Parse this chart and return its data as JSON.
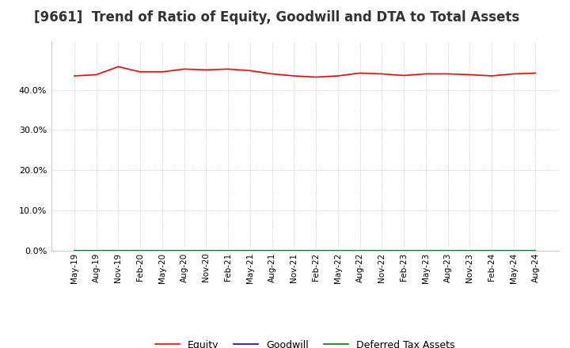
{
  "title": "[9661]  Trend of Ratio of Equity, Goodwill and DTA to Total Assets",
  "title_fontsize": 12,
  "background_color": "#ffffff",
  "plot_bg_color": "#ffffff",
  "grid_color": "#aaaaaa",
  "ylim": [
    0.0,
    0.52
  ],
  "yticks": [
    0.0,
    0.1,
    0.2,
    0.3,
    0.4
  ],
  "x_labels": [
    "May-19",
    "Aug-19",
    "Nov-19",
    "Feb-20",
    "May-20",
    "Aug-20",
    "Nov-20",
    "Feb-21",
    "May-21",
    "Aug-21",
    "Nov-21",
    "Feb-22",
    "May-22",
    "Aug-22",
    "Nov-22",
    "Feb-23",
    "May-23",
    "Aug-23",
    "Nov-23",
    "Feb-24",
    "May-24",
    "Aug-24"
  ],
  "equity": [
    0.435,
    0.438,
    0.458,
    0.445,
    0.445,
    0.452,
    0.45,
    0.452,
    0.448,
    0.44,
    0.435,
    0.432,
    0.435,
    0.442,
    0.44,
    0.436,
    0.44,
    0.44,
    0.438,
    0.435,
    0.44,
    0.442
  ],
  "goodwill": [
    0.0,
    0.0,
    0.0,
    0.0,
    0.0,
    0.0,
    0.0,
    0.0,
    0.0,
    0.0,
    0.0,
    0.0,
    0.0,
    0.0,
    0.0,
    0.0,
    0.0,
    0.0,
    0.0,
    0.0,
    0.0,
    0.0
  ],
  "dta": [
    0.0,
    0.0,
    0.0,
    0.0,
    0.0,
    0.0,
    0.0,
    0.0,
    0.0,
    0.0,
    0.0,
    0.0,
    0.0,
    0.0,
    0.0,
    0.0,
    0.0,
    0.0,
    0.0,
    0.0,
    0.0,
    0.0
  ],
  "equity_color": "#ff0000",
  "goodwill_color": "#0000ff",
  "dta_color": "#008000",
  "legend_labels": [
    "Equity",
    "Goodwill",
    "Deferred Tax Assets"
  ]
}
